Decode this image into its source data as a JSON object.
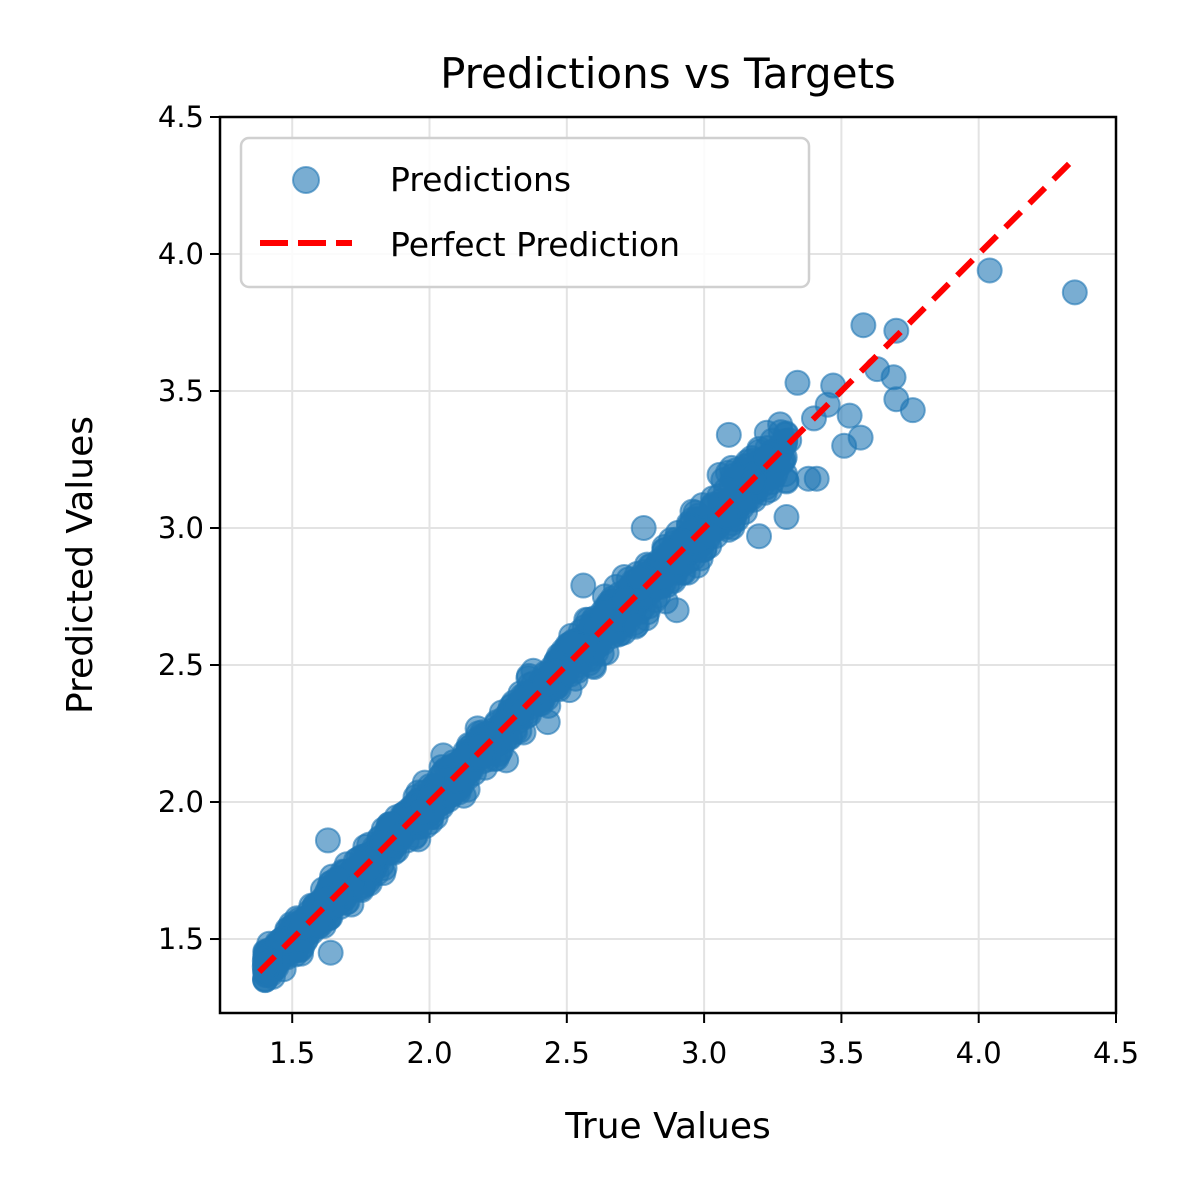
{
  "chart_data": {
    "type": "scatter",
    "title": "Predictions vs Targets",
    "xlabel": "True Values",
    "ylabel": "Predicted Values",
    "xlim": [
      1.237,
      4.5
    ],
    "ylim": [
      1.23,
      4.5
    ],
    "xticks": [
      1.5,
      2.0,
      2.5,
      3.0,
      3.5,
      4.0,
      4.5
    ],
    "xtick_labels": [
      "1.5",
      "2.0",
      "2.5",
      "3.0",
      "3.5",
      "4.0",
      "4.5"
    ],
    "yticks": [
      1.5,
      2.0,
      2.5,
      3.0,
      3.5,
      4.0,
      4.5
    ],
    "ytick_labels": [
      "1.5",
      "2.0",
      "2.5",
      "3.0",
      "3.5",
      "4.0",
      "4.5"
    ],
    "grid": true,
    "legend_position": "upper left",
    "legend": [
      {
        "label": "Predictions",
        "marker": "circle",
        "color": "#1f77b4"
      },
      {
        "label": "Perfect Prediction",
        "marker": "dashed-line",
        "color": "#ff0000"
      }
    ],
    "series": [
      {
        "name": "Predictions",
        "kind": "scatter",
        "color": "#1f77b4",
        "alpha": 0.6,
        "band": {
          "x_range": [
            1.4,
            3.3
          ],
          "spread_std": 0.06,
          "note": "dense cluster along y=x"
        },
        "outliers": [
          {
            "x": 4.04,
            "y": 3.94
          },
          {
            "x": 4.35,
            "y": 3.86
          },
          {
            "x": 3.58,
            "y": 3.74
          },
          {
            "x": 3.7,
            "y": 3.72
          },
          {
            "x": 3.34,
            "y": 3.53
          },
          {
            "x": 3.47,
            "y": 3.52
          },
          {
            "x": 3.63,
            "y": 3.58
          },
          {
            "x": 3.69,
            "y": 3.55
          },
          {
            "x": 3.7,
            "y": 3.47
          },
          {
            "x": 3.76,
            "y": 3.43
          },
          {
            "x": 3.53,
            "y": 3.41
          },
          {
            "x": 3.57,
            "y": 3.33
          },
          {
            "x": 3.51,
            "y": 3.3
          },
          {
            "x": 3.09,
            "y": 3.34
          },
          {
            "x": 3.31,
            "y": 3.32
          },
          {
            "x": 3.3,
            "y": 3.17
          },
          {
            "x": 3.41,
            "y": 3.18
          },
          {
            "x": 3.38,
            "y": 3.18
          },
          {
            "x": 3.3,
            "y": 3.04
          },
          {
            "x": 3.2,
            "y": 2.97
          },
          {
            "x": 3.45,
            "y": 3.45
          },
          {
            "x": 3.4,
            "y": 3.4
          },
          {
            "x": 1.63,
            "y": 1.86
          },
          {
            "x": 1.64,
            "y": 1.45
          },
          {
            "x": 2.05,
            "y": 2.17
          },
          {
            "x": 2.56,
            "y": 2.79
          },
          {
            "x": 2.78,
            "y": 3.0
          },
          {
            "x": 3.08,
            "y": 3.14
          },
          {
            "x": 2.75,
            "y": 2.64
          },
          {
            "x": 2.9,
            "y": 2.7
          }
        ]
      },
      {
        "name": "Perfect Prediction",
        "kind": "line",
        "style": "dashed",
        "color": "#ff0000",
        "x": [
          1.38,
          4.36
        ],
        "y": [
          1.38,
          4.36
        ]
      }
    ]
  }
}
